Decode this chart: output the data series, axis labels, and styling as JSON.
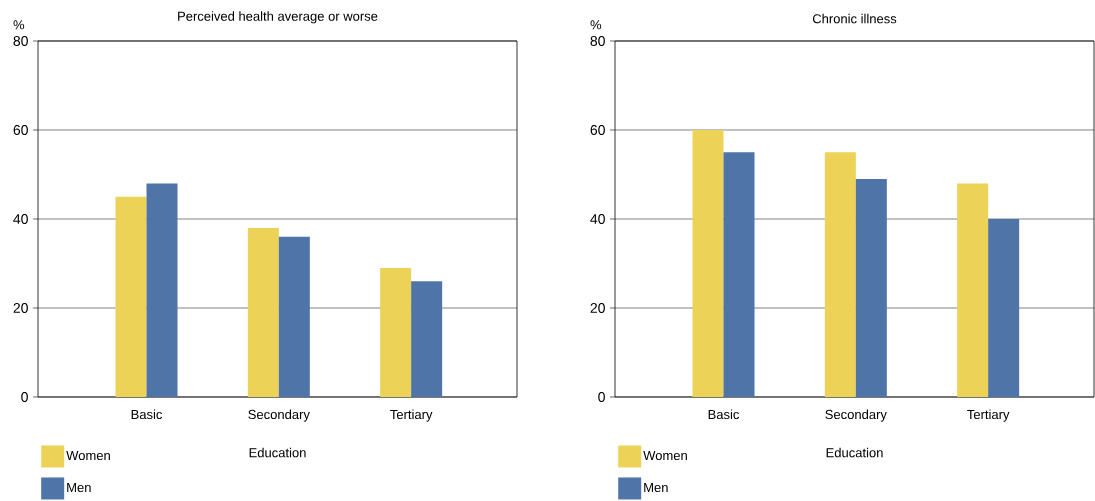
{
  "chart_data": [
    {
      "type": "bar",
      "title": "Perceived health average or worse",
      "xlabel": "Education",
      "ylabel": "%",
      "categories": [
        "Basic",
        "Secondary",
        "Tertiary"
      ],
      "series": [
        {
          "name": "Women",
          "color": "#ecd357",
          "values": [
            45,
            38,
            29
          ]
        },
        {
          "name": "Men",
          "color": "#4e74a8",
          "values": [
            48,
            36,
            26
          ]
        }
      ],
      "ylim": [
        0,
        80
      ],
      "yticks": [
        0,
        20,
        40,
        60,
        80
      ],
      "grid": "y",
      "legend": "bottom left"
    },
    {
      "type": "bar",
      "title": "Chronic illness",
      "xlabel": "Education",
      "ylabel": "%",
      "categories": [
        "Basic",
        "Secondary",
        "Tertiary"
      ],
      "series": [
        {
          "name": "Women",
          "color": "#ecd357",
          "values": [
            60,
            55,
            48
          ]
        },
        {
          "name": "Men",
          "color": "#4e74a8",
          "values": [
            55,
            49,
            40
          ]
        }
      ],
      "ylim": [
        0,
        80
      ],
      "yticks": [
        0,
        20,
        40,
        60,
        80
      ],
      "grid": "y",
      "legend": "bottom left"
    }
  ]
}
